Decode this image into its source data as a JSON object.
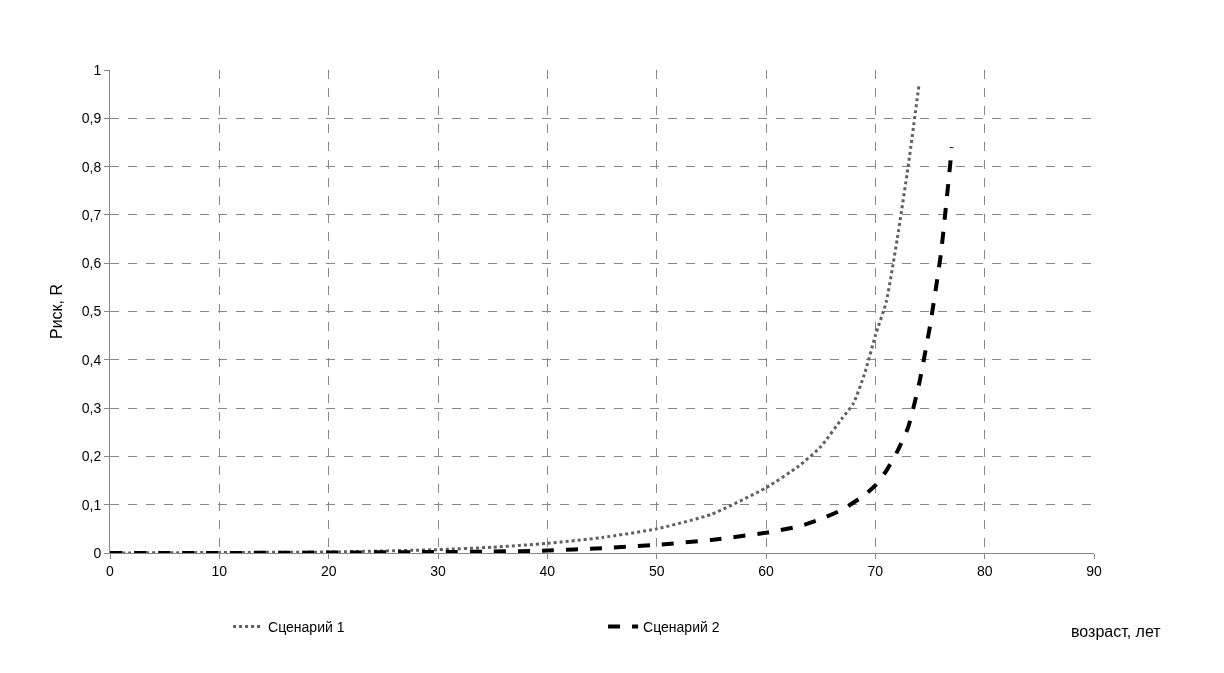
{
  "chart_data": {
    "type": "line",
    "ylabel": "Риск, R",
    "xlabel": "возраст, лет",
    "xlim": [
      0,
      90
    ],
    "xticks": [
      0,
      10,
      20,
      30,
      40,
      50,
      60,
      70,
      80,
      90
    ],
    "ylim": [
      0,
      1
    ],
    "yticks": [
      0,
      {
        "value": 0.1,
        "label": "0,1"
      },
      {
        "value": 0.2,
        "label": "0,2"
      },
      {
        "value": 0.3,
        "label": "0,3"
      },
      {
        "value": 0.4,
        "label": "0,4"
      },
      {
        "value": 0.5,
        "label": "0,5"
      },
      {
        "value": 0.6,
        "label": "0,6"
      },
      {
        "value": 0.7,
        "label": "0,7"
      },
      {
        "value": 0.8,
        "label": "0,8"
      },
      {
        "value": 0.9,
        "label": "0,9"
      },
      1
    ],
    "grid": true,
    "legend": "bottom",
    "marker": "none",
    "series": [
      {
        "name": "Сценарий 1",
        "color": "#606060",
        "line_style": "dotted",
        "x": [
          0,
          10,
          20,
          30,
          35,
          40,
          45,
          50,
          55,
          60,
          63,
          65,
          67,
          68,
          69,
          70,
          71,
          72,
          73,
          74
        ],
        "values": [
          0,
          0.001,
          0.002,
          0.007,
          0.012,
          0.02,
          0.032,
          0.05,
          0.08,
          0.135,
          0.18,
          0.22,
          0.28,
          0.31,
          0.37,
          0.45,
          0.52,
          0.65,
          0.8,
          0.97
        ]
      },
      {
        "name": "Сценарий 2",
        "color": "#000000",
        "line_style": "dashed",
        "x": [
          0,
          10,
          20,
          30,
          35,
          40,
          45,
          50,
          55,
          60,
          63,
          65,
          67,
          69,
          70,
          71,
          72,
          73,
          74,
          75,
          76,
          77
        ],
        "values": [
          0,
          0,
          0.001,
          0.002,
          0.003,
          0.005,
          0.01,
          0.017,
          0.027,
          0.042,
          0.055,
          0.07,
          0.09,
          0.12,
          0.14,
          0.17,
          0.21,
          0.26,
          0.35,
          0.47,
          0.62,
          0.84
        ]
      }
    ]
  }
}
